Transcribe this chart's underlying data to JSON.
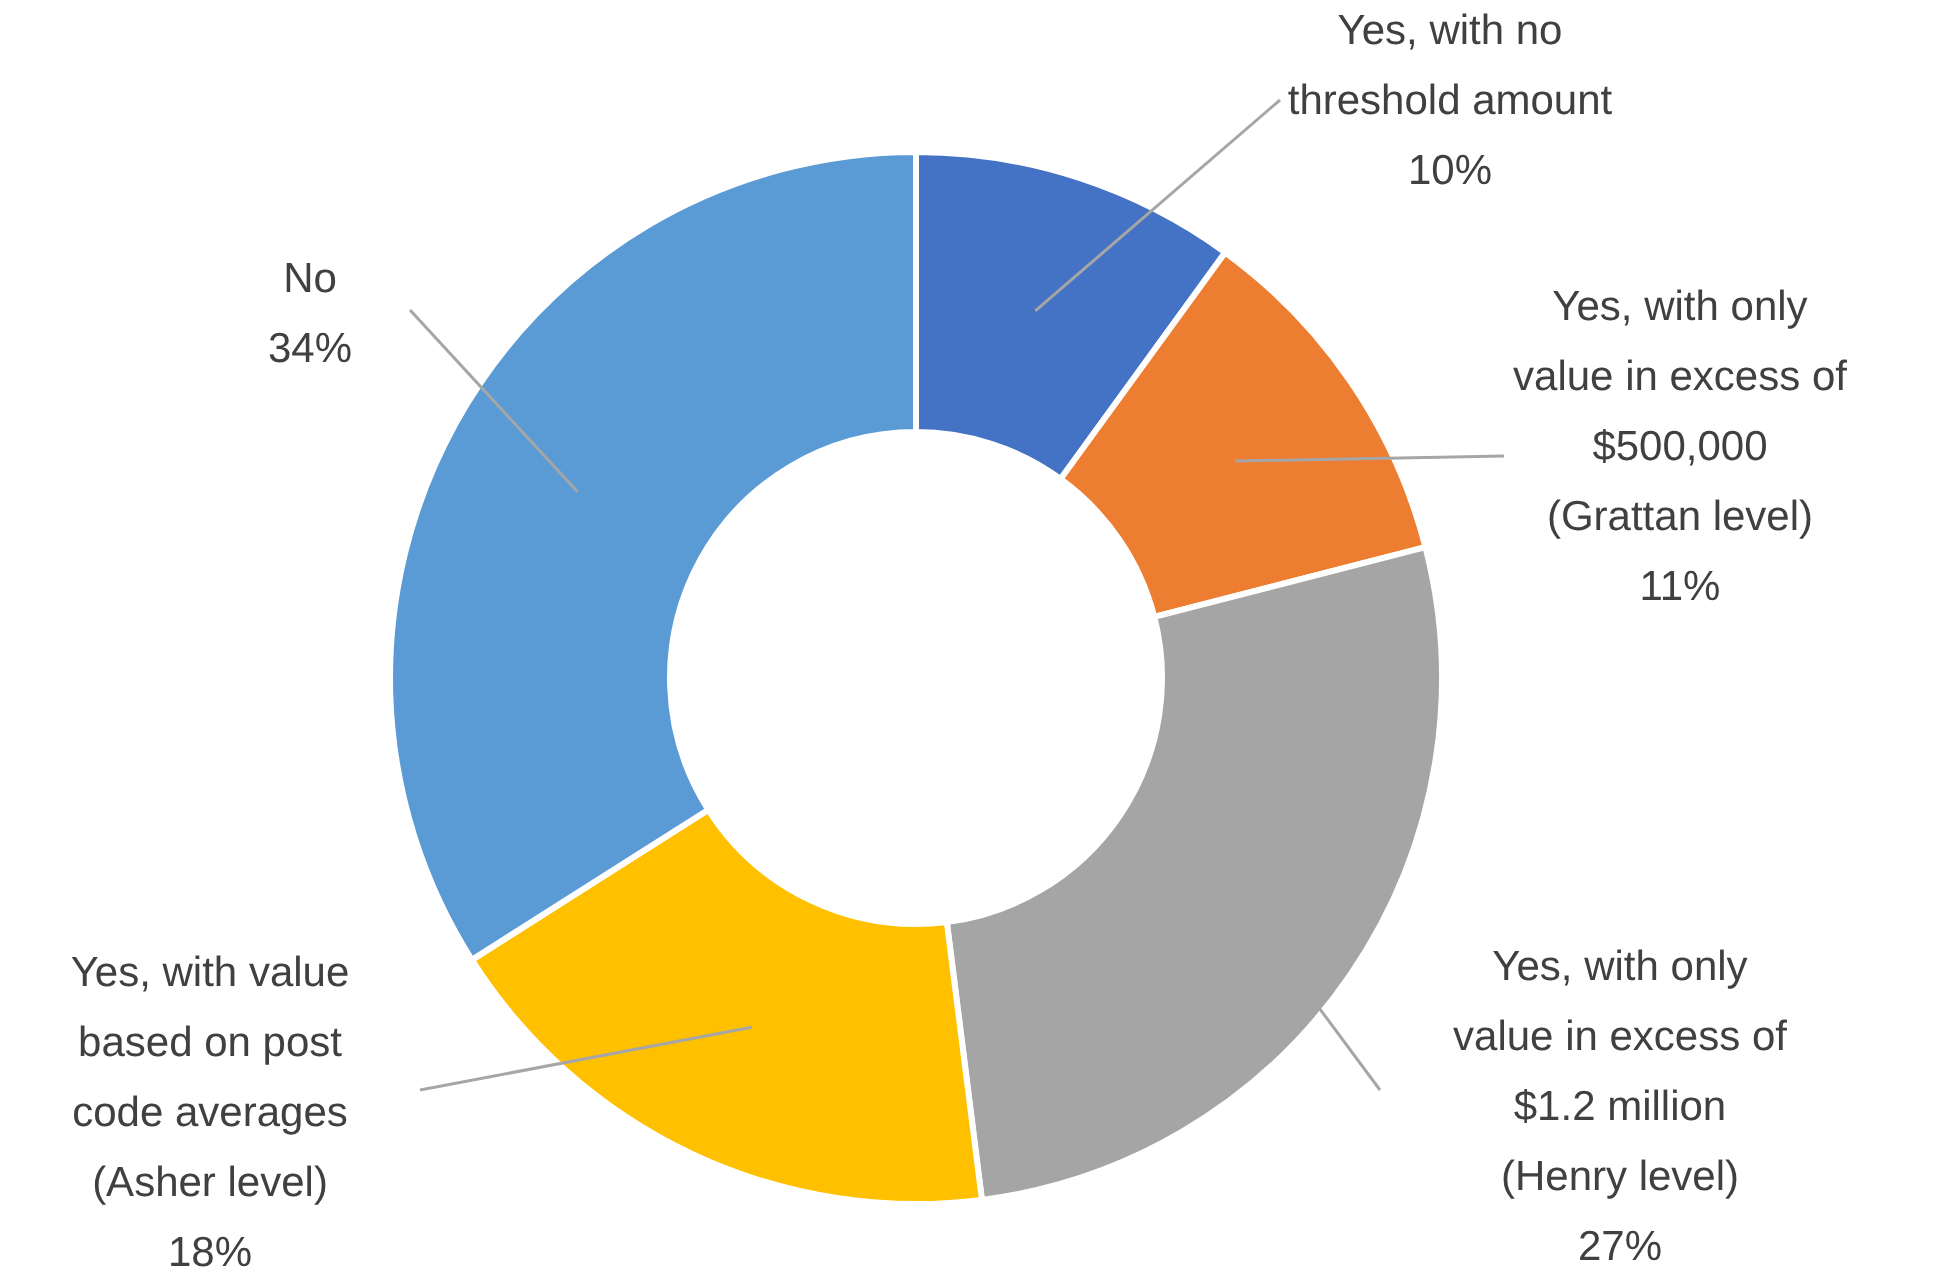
{
  "chart_data": {
    "type": "donut",
    "categories": [
      "Yes, with no\nthreshold amount",
      "Yes, with only\nvalue in excess of\n$500,000\n(Grattan level)",
      "Yes, with only\nvalue in excess of\n$1.2 million\n(Henry level)",
      "Yes, with value\nbased on post\ncode averages\n(Asher level)",
      "No"
    ],
    "values": [
      10,
      11,
      27,
      18,
      34
    ],
    "value_labels": [
      "10%",
      "11%",
      "27%",
      "18%",
      "34%"
    ],
    "colors": [
      "#4472c4",
      "#ed7d31",
      "#a5a5a5",
      "#ffc000",
      "#5b9bd5"
    ],
    "legend": false
  }
}
